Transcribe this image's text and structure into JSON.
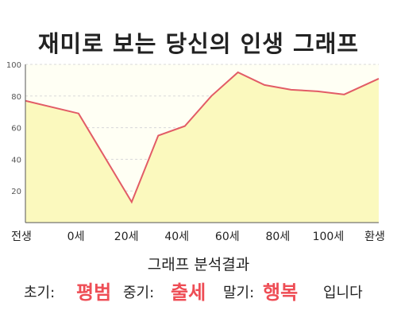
{
  "title": "재미로 보는 당신의 인생 그래프",
  "chart_data": {
    "type": "area",
    "x_labels": [
      "전생",
      "0세",
      "20세",
      "40세",
      "60세",
      "80세",
      "100세",
      "환생"
    ],
    "x": [
      -20,
      0,
      20,
      30,
      40,
      50,
      60,
      70,
      80,
      90,
      100,
      113
    ],
    "values": [
      77,
      69,
      13,
      55,
      61,
      80,
      95,
      87,
      84,
      83,
      81,
      91
    ],
    "ylim": [
      0,
      100
    ],
    "yticks": [
      20,
      40,
      60,
      80,
      100
    ],
    "grid": true,
    "line_color": "#e25c66",
    "fill_color": "#fbf9be",
    "plot_bg": "#fffff4"
  },
  "result": {
    "heading": "그래프 분석결과",
    "early_label": "초기:",
    "early_value": "평범",
    "mid_label": "중기:",
    "mid_value": "출세",
    "late_label": "말기:",
    "late_value": "행복",
    "ending": "입니다"
  }
}
